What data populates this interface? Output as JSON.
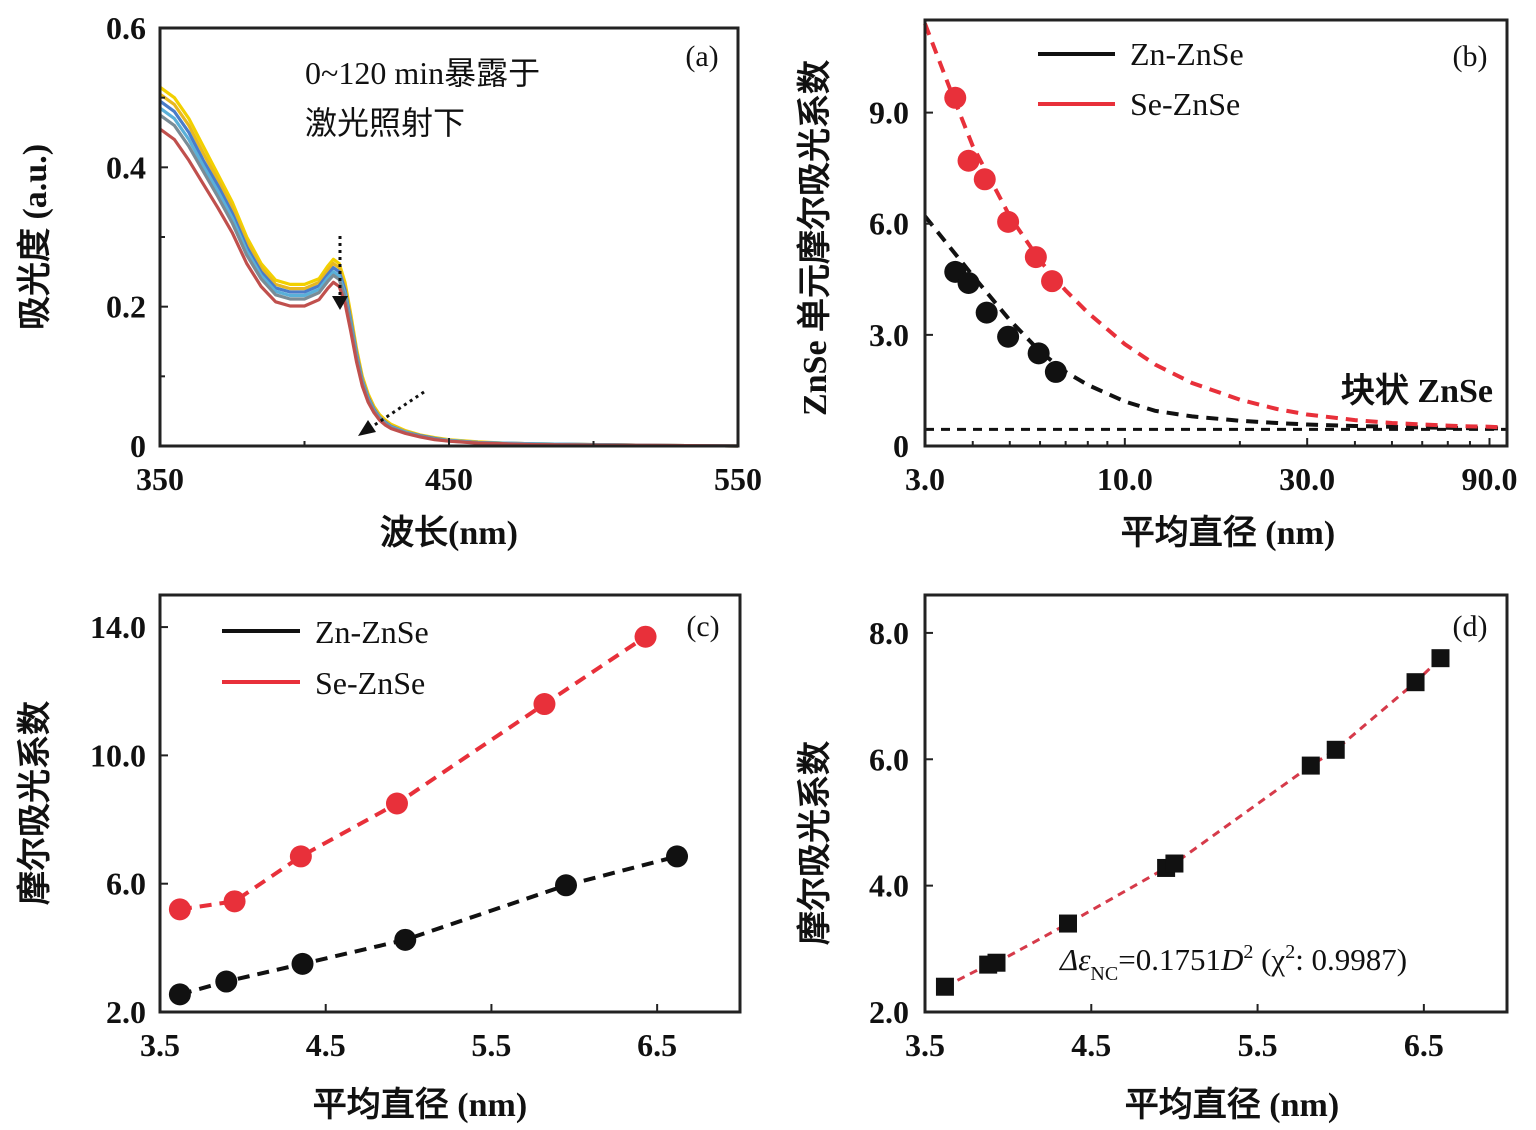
{
  "chart_data": [
    {
      "panel": "(a)",
      "type": "line",
      "xlabel": "波长(nm)",
      "ylabel": "吸光度 (a.u.)",
      "xlim": [
        350,
        550
      ],
      "ylim": [
        0,
        0.6
      ],
      "xticks": [
        "350",
        "450",
        "550"
      ],
      "yticks": [
        "0",
        "0.2",
        "0.4",
        "0.6"
      ],
      "xtick_values": [
        350,
        450,
        550
      ],
      "ytick_values": [
        0,
        0.2,
        0.4,
        0.6
      ],
      "annotation_lines": [
        "0~120 min暴露于",
        "激光照射下"
      ],
      "curve_x": [
        350,
        355,
        360,
        365,
        370,
        375,
        380,
        385,
        390,
        395,
        400,
        405,
        408,
        410,
        412,
        414,
        416,
        418,
        420,
        422,
        424,
        426,
        428,
        430,
        435,
        440,
        445,
        450,
        460,
        470,
        480,
        500,
        520,
        550
      ],
      "series": [
        {
          "color": "#f2d000",
          "values": [
            0.515,
            0.5,
            0.47,
            0.43,
            0.39,
            0.35,
            0.3,
            0.262,
            0.238,
            0.232,
            0.232,
            0.24,
            0.258,
            0.268,
            0.262,
            0.235,
            0.19,
            0.14,
            0.1,
            0.075,
            0.057,
            0.045,
            0.037,
            0.031,
            0.022,
            0.016,
            0.012,
            0.009,
            0.006,
            0.004,
            0.003,
            0.002,
            0.001,
            0.0
          ]
        },
        {
          "color": "#e8b820",
          "values": [
            0.505,
            0.49,
            0.46,
            0.42,
            0.382,
            0.342,
            0.293,
            0.256,
            0.232,
            0.226,
            0.226,
            0.235,
            0.252,
            0.262,
            0.256,
            0.229,
            0.185,
            0.136,
            0.097,
            0.072,
            0.055,
            0.043,
            0.035,
            0.029,
            0.021,
            0.015,
            0.011,
            0.008,
            0.005,
            0.004,
            0.003,
            0.002,
            0.001,
            0.0
          ]
        },
        {
          "color": "#4a7cc9",
          "values": [
            0.495,
            0.48,
            0.45,
            0.41,
            0.374,
            0.334,
            0.286,
            0.25,
            0.227,
            0.221,
            0.221,
            0.23,
            0.246,
            0.256,
            0.25,
            0.224,
            0.181,
            0.133,
            0.094,
            0.07,
            0.053,
            0.041,
            0.034,
            0.028,
            0.02,
            0.015,
            0.011,
            0.008,
            0.005,
            0.004,
            0.003,
            0.002,
            0.001,
            0.0
          ]
        },
        {
          "color": "#5ab0d8",
          "values": [
            0.485,
            0.47,
            0.44,
            0.402,
            0.366,
            0.327,
            0.28,
            0.245,
            0.222,
            0.216,
            0.216,
            0.225,
            0.241,
            0.25,
            0.244,
            0.219,
            0.177,
            0.13,
            0.092,
            0.068,
            0.051,
            0.04,
            0.033,
            0.027,
            0.02,
            0.014,
            0.01,
            0.008,
            0.005,
            0.004,
            0.003,
            0.002,
            0.001,
            0.0
          ]
        },
        {
          "color": "#7a8c96",
          "values": [
            0.475,
            0.46,
            0.43,
            0.394,
            0.358,
            0.32,
            0.274,
            0.24,
            0.217,
            0.211,
            0.211,
            0.22,
            0.236,
            0.245,
            0.239,
            0.214,
            0.173,
            0.127,
            0.09,
            0.066,
            0.05,
            0.039,
            0.032,
            0.026,
            0.019,
            0.014,
            0.01,
            0.007,
            0.005,
            0.003,
            0.002,
            0.002,
            0.001,
            0.0
          ]
        },
        {
          "color": "#c0504d",
          "values": [
            0.455,
            0.44,
            0.41,
            0.376,
            0.342,
            0.306,
            0.262,
            0.229,
            0.207,
            0.201,
            0.201,
            0.21,
            0.226,
            0.235,
            0.229,
            0.205,
            0.165,
            0.121,
            0.086,
            0.063,
            0.048,
            0.037,
            0.03,
            0.025,
            0.018,
            0.013,
            0.009,
            0.007,
            0.004,
            0.003,
            0.002,
            0.001,
            0.001,
            0.0
          ]
        }
      ]
    },
    {
      "panel": "(b)",
      "type": "scatter",
      "xscale": "log",
      "xlabel": "平均直径 (nm)",
      "ylabel": "ZnSe 单元摩尔吸光系数",
      "xlim": [
        3,
        100
      ],
      "ylim": [
        0,
        11.5
      ],
      "xticks": [
        "3.0",
        "10.0",
        "30.0",
        "90.0"
      ],
      "yticks": [
        "0",
        "3.0",
        "6.0",
        "9.0"
      ],
      "xtick_values": [
        3,
        10,
        30,
        90
      ],
      "ytick_values": [
        0,
        3,
        6,
        9
      ],
      "legend_position": "top-center",
      "bulk_label": "块状 ZnSe",
      "bulk_value": 0.45,
      "series": [
        {
          "name": "Zn-ZnSe",
          "color": "#111111",
          "x": [
            3.6,
            3.9,
            4.35,
            4.95,
            5.95,
            6.6
          ],
          "values": [
            4.7,
            4.4,
            3.6,
            2.95,
            2.5,
            2.0
          ],
          "fit_x": [
            3,
            4,
            5,
            6,
            7,
            8,
            10,
            12,
            15,
            20,
            25,
            30,
            40,
            50,
            60,
            70,
            80,
            90,
            100
          ],
          "fit_values": [
            6.2,
            4.6,
            3.4,
            2.55,
            2.0,
            1.65,
            1.2,
            0.95,
            0.8,
            0.68,
            0.62,
            0.58,
            0.54,
            0.52,
            0.5,
            0.49,
            0.48,
            0.48,
            0.47
          ]
        },
        {
          "name": "Se-ZnSe",
          "color": "#e8303a",
          "x": [
            3.6,
            3.9,
            4.3,
            4.95,
            5.85,
            6.45
          ],
          "values": [
            9.4,
            7.7,
            7.2,
            6.05,
            5.1,
            4.45
          ],
          "fit_x": [
            3,
            3.5,
            4,
            5,
            6,
            7,
            8,
            10,
            12,
            15,
            20,
            25,
            30,
            40,
            50,
            60,
            70,
            80,
            90,
            100
          ],
          "fit_values": [
            11.4,
            9.6,
            8.1,
            6.2,
            5.0,
            4.2,
            3.6,
            2.75,
            2.2,
            1.7,
            1.25,
            1.0,
            0.85,
            0.7,
            0.62,
            0.58,
            0.55,
            0.53,
            0.52,
            0.5
          ]
        }
      ]
    },
    {
      "panel": "(c)",
      "type": "scatter",
      "xlabel": "平均直径 (nm)",
      "ylabel": "摩尔吸光系数",
      "xlim": [
        3.5,
        7.0
      ],
      "ylim": [
        2.0,
        15.0
      ],
      "xticks": [
        "3.5",
        "4.5",
        "5.5",
        "6.5"
      ],
      "yticks": [
        "2.0",
        "6.0",
        "10.0",
        "14.0"
      ],
      "xtick_values": [
        3.5,
        4.5,
        5.5,
        6.5
      ],
      "ytick_values": [
        2.0,
        6.0,
        10.0,
        14.0
      ],
      "legend_position": "top-left",
      "series": [
        {
          "name": "Zn-ZnSe",
          "color": "#111111",
          "x": [
            3.62,
            3.9,
            4.36,
            4.98,
            5.95,
            6.62
          ],
          "values": [
            2.55,
            2.95,
            3.5,
            4.25,
            5.95,
            6.85
          ]
        },
        {
          "name": "Se-ZnSe",
          "color": "#e8303a",
          "x": [
            3.62,
            3.95,
            4.35,
            4.93,
            5.82,
            6.43
          ],
          "values": [
            5.2,
            5.45,
            6.85,
            8.5,
            11.6,
            13.7
          ]
        }
      ]
    },
    {
      "panel": "(d)",
      "type": "scatter",
      "xlabel": "平均直径 (nm)",
      "ylabel": "摩尔吸光系数",
      "xlim": [
        3.5,
        7.0
      ],
      "ylim": [
        2.0,
        8.6
      ],
      "xticks": [
        "3.5",
        "4.5",
        "5.5",
        "6.5"
      ],
      "yticks": [
        "2.0",
        "4.0",
        "6.0",
        "8.0"
      ],
      "xtick_values": [
        3.5,
        4.5,
        5.5,
        6.5
      ],
      "ytick_values": [
        2.0,
        4.0,
        6.0,
        8.0
      ],
      "equation": {
        "lhs_main": "Δε",
        "lhs_sub": "NC",
        "coef": "=0.1751",
        "var": "D",
        "power": "2",
        "tail_open": " (χ",
        "tail_power": "2",
        "tail_close": ": 0.9987)"
      },
      "series": [
        {
          "marker": "square",
          "color": "#111111",
          "fit_color": "#d63a4a",
          "x": [
            3.62,
            3.88,
            3.93,
            4.36,
            4.95,
            5.0,
            5.82,
            5.97,
            6.45,
            6.6
          ],
          "values": [
            2.4,
            2.75,
            2.78,
            3.4,
            4.28,
            4.35,
            5.9,
            6.15,
            7.22,
            7.6
          ]
        }
      ]
    }
  ]
}
